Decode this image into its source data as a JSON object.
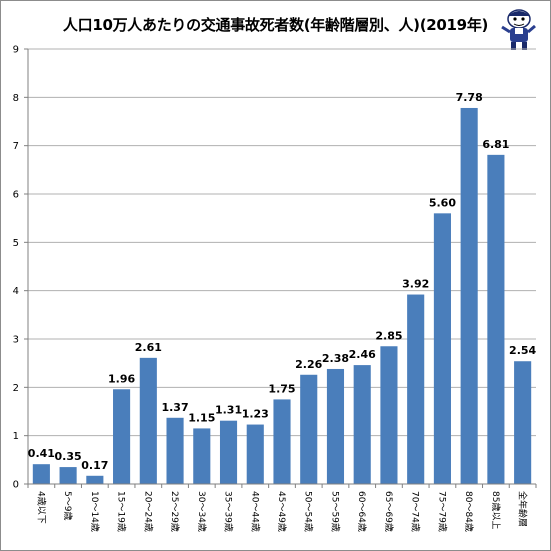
{
  "chart_data": {
    "type": "bar",
    "title": "人口10万人あたりの交通事故死者数(年齢階層別、人)(2019年)",
    "categories": [
      "4歳以下",
      "5～9歳",
      "10～14歳",
      "15～19歳",
      "20～24歳",
      "25～29歳",
      "30～34歳",
      "35～39歳",
      "40～44歳",
      "45～49歳",
      "50～54歳",
      "55～59歳",
      "60～64歳",
      "65～69歳",
      "70～74歳",
      "75～79歳",
      "80～84歳",
      "85歳以上",
      "全年齢層"
    ],
    "values": [
      0.41,
      0.35,
      0.17,
      1.96,
      2.61,
      1.37,
      1.15,
      1.31,
      1.23,
      1.75,
      2.26,
      2.38,
      2.46,
      2.85,
      3.92,
      5.6,
      7.78,
      6.81,
      2.54
    ],
    "value_labels": [
      "0.41",
      "0.35",
      "0.17",
      "1.96",
      "2.61",
      "1.37",
      "1.15",
      "1.31",
      "1.23",
      "1.75",
      "2.26",
      "2.38",
      "2.46",
      "2.85",
      "3.92",
      "5.60",
      "7.78",
      "6.81",
      "2.54"
    ],
    "ylim": [
      0,
      9
    ],
    "yticks": [
      "0",
      "1",
      "2",
      "3",
      "4",
      "5",
      "6",
      "7",
      "8",
      "9"
    ],
    "xlabel": "",
    "ylabel": "",
    "grid": true,
    "bar_color": "#4a7ebb",
    "grid_color": "#b0b0b0"
  },
  "mascot_icon": "mascot-character-icon"
}
